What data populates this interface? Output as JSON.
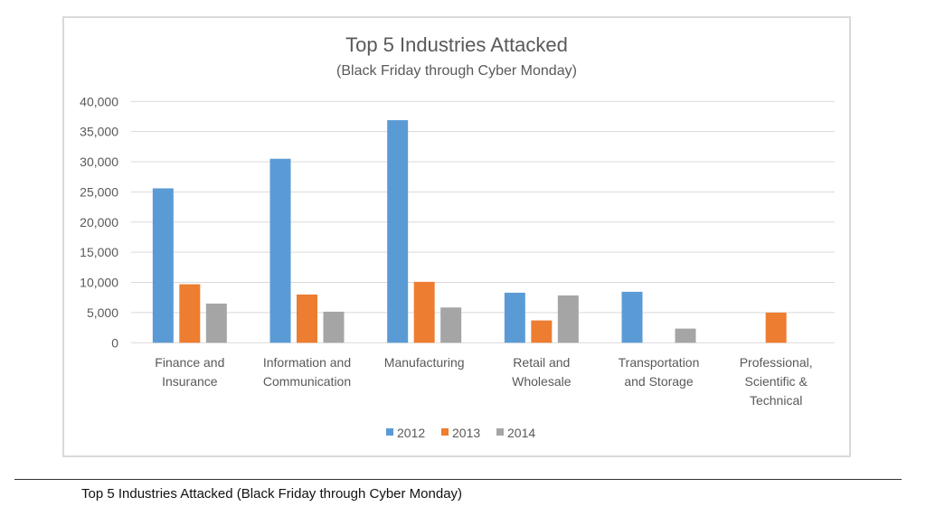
{
  "chart_data": {
    "type": "bar",
    "title": "Top 5 Industries Attacked",
    "subtitle": "(Black Friday through Cyber Monday)",
    "xlabel": "",
    "ylabel": "",
    "ylim": [
      0,
      40000
    ],
    "yticks": [
      0,
      5000,
      10000,
      15000,
      20000,
      25000,
      30000,
      35000,
      40000
    ],
    "ytick_labels": [
      "0",
      "5,000",
      "10,000",
      "15,000",
      "20,000",
      "25,000",
      "30,000",
      "35,000",
      "40,000"
    ],
    "grid": true,
    "legend_position": "bottom",
    "categories": [
      [
        "Finance and",
        "Insurance"
      ],
      [
        "Information and",
        "Communication"
      ],
      [
        "Manufacturing"
      ],
      [
        "Retail and",
        "Wholesale"
      ],
      [
        "Transportation",
        "and Storage"
      ],
      [
        "Professional,",
        "Scientific &",
        "Technical"
      ]
    ],
    "series": [
      {
        "name": "2012",
        "color": "#5B9BD5",
        "values": [
          25600,
          30500,
          36900,
          8300,
          8450,
          0
        ]
      },
      {
        "name": "2013",
        "color": "#ED7D31",
        "values": [
          9700,
          8000,
          10100,
          3700,
          0,
          5000
        ]
      },
      {
        "name": "2014",
        "color": "#A5A5A5",
        "values": [
          6500,
          5150,
          5850,
          7850,
          2350,
          0
        ]
      }
    ]
  },
  "caption": "Top 5 Industries Attacked (Black Friday through Cyber Monday)"
}
